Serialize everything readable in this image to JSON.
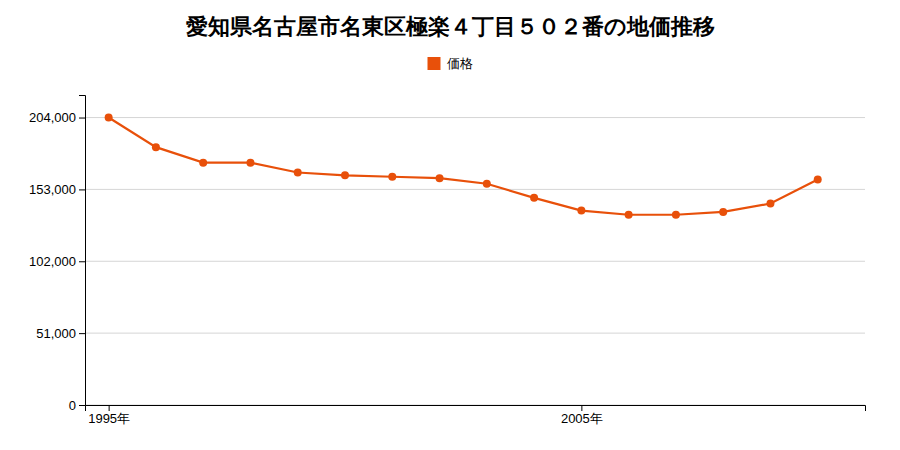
{
  "chart_data": {
    "type": "line",
    "title": "愛知県名古屋市名東区極楽４丁目５０２番の地価推移",
    "x": [
      1995,
      1996,
      1997,
      1998,
      1999,
      2000,
      2001,
      2002,
      2003,
      2004,
      2005,
      2006,
      2007,
      2008,
      2009,
      2010
    ],
    "series": [
      {
        "name": "価格",
        "color": "#e8500a",
        "marker": "circle",
        "values": [
          204000,
          183000,
          172000,
          172000,
          165000,
          163000,
          162000,
          161000,
          157000,
          147000,
          138000,
          135000,
          135000,
          137000,
          143000,
          160000
        ]
      }
    ],
    "xlim": [
      1994.5,
      2011
    ],
    "xticks": [
      {
        "value": 1995,
        "label": "1995年"
      },
      {
        "value": 2005,
        "label": "2005年"
      }
    ],
    "ylim": [
      0,
      220000
    ],
    "yticks": [
      0,
      {
        "value": 51000,
        "label": "51,000"
      },
      {
        "value": 102000,
        "label": "102,000"
      },
      {
        "value": 153000,
        "label": "153,000"
      },
      {
        "value": 204000,
        "label": "204,000"
      }
    ],
    "grid": "y",
    "legend": "top"
  }
}
